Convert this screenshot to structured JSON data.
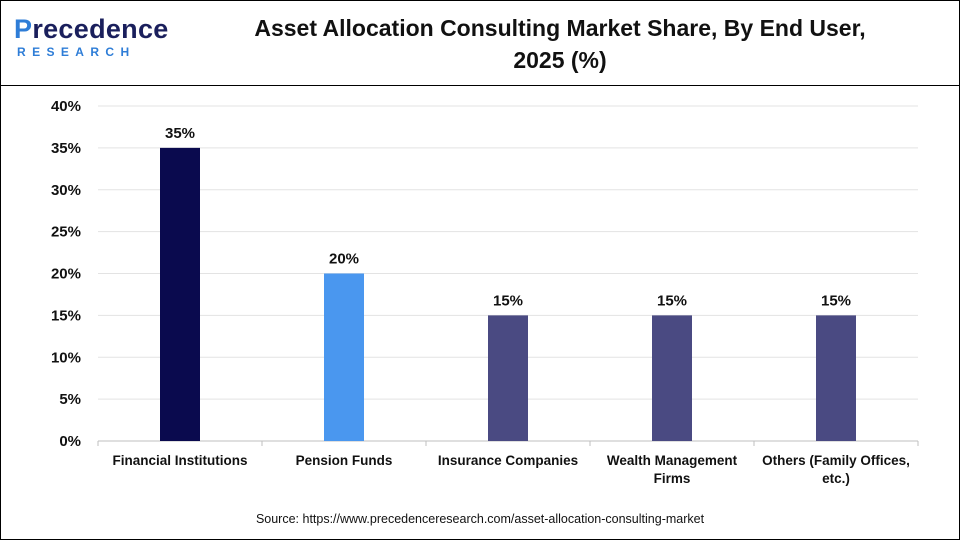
{
  "brand": {
    "name_prefix": "P",
    "name_rest": "recedence",
    "subtitle": "RESEARCH"
  },
  "header": {
    "title_line1": "Asset Allocation Consulting Market Share, By End User,",
    "title_line2": "2025 (%)"
  },
  "source": "Source: https://www.precedenceresearch.com/asset-allocation-consulting-market",
  "chart_data": {
    "type": "bar",
    "categories": [
      [
        "Financial Institutions"
      ],
      [
        "Pension Funds"
      ],
      [
        "Insurance Companies"
      ],
      [
        "Wealth Management",
        "Firms"
      ],
      [
        "Others (Family Offices,",
        "etc.)"
      ]
    ],
    "values": [
      35,
      20,
      15,
      15,
      15
    ],
    "data_labels": [
      "35%",
      "20%",
      "15%",
      "15%",
      "15%"
    ],
    "bar_colors": [
      "#0a0a4e",
      "#4a97ef",
      "#4a4a82",
      "#4a4a82",
      "#4a4a82"
    ],
    "ylim": [
      0,
      40
    ],
    "yticks": [
      0,
      5,
      10,
      15,
      20,
      25,
      30,
      35,
      40
    ],
    "ytick_labels": [
      "0%",
      "5%",
      "10%",
      "15%",
      "20%",
      "25%",
      "30%",
      "35%",
      "40%"
    ],
    "grid": true,
    "legend": "none"
  }
}
